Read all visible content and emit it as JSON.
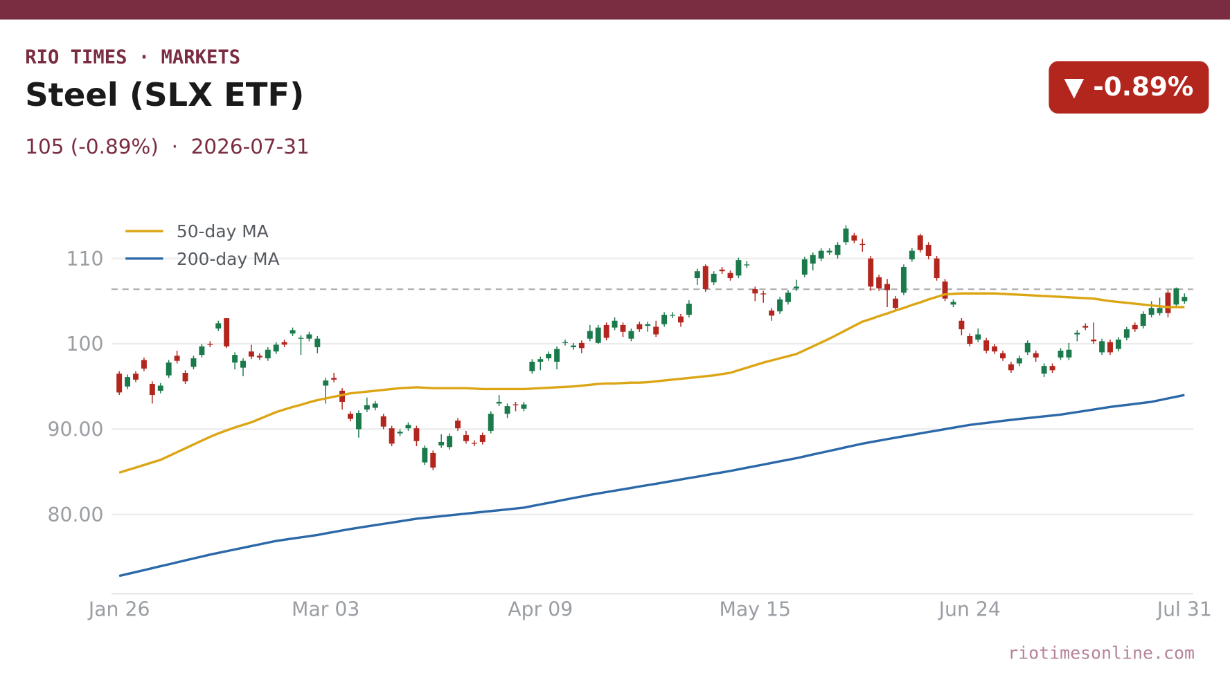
{
  "header": {
    "kicker": "RIO TIMES · MARKETS",
    "title": "Steel (SLX ETF)",
    "subtitle": "105 (-0.89%)  ·  2026-07-31",
    "badge": "▼ -0.89%"
  },
  "footer": "riotimesonline.com",
  "chart_data": {
    "type": "candlestick",
    "categories": [
      "Jan 26",
      null,
      null,
      null,
      null,
      null,
      null,
      null,
      null,
      null,
      null,
      null,
      null,
      null,
      null,
      null,
      null,
      null,
      null,
      null,
      null,
      null,
      null,
      null,
      null,
      "Mar 03",
      null,
      null,
      null,
      null,
      null,
      null,
      null,
      null,
      null,
      null,
      null,
      null,
      null,
      null,
      null,
      null,
      null,
      null,
      null,
      null,
      null,
      null,
      null,
      null,
      null,
      "Apr 09",
      null,
      null,
      null,
      null,
      null,
      null,
      null,
      null,
      null,
      null,
      null,
      null,
      null,
      null,
      null,
      null,
      null,
      null,
      null,
      null,
      null,
      null,
      null,
      null,
      null,
      "May 15",
      null,
      null,
      null,
      null,
      null,
      null,
      null,
      null,
      null,
      null,
      null,
      null,
      null,
      null,
      null,
      null,
      null,
      null,
      null,
      null,
      null,
      null,
      null,
      null,
      null,
      "Jun 24",
      null,
      null,
      null,
      null,
      null,
      null,
      null,
      null,
      null,
      null,
      null,
      null,
      null,
      null,
      null,
      null,
      null,
      null,
      null,
      null,
      null,
      null,
      null,
      null,
      null,
      "Jul 31"
    ],
    "open": [
      96.5,
      95.0,
      96.5,
      98.1,
      95.3,
      94.5,
      96.3,
      98.6,
      96.6,
      97.3,
      98.7,
      100.0,
      101.8,
      103.0,
      97.8,
      97.2,
      99.1,
      98.6,
      98.3,
      99.1,
      100.2,
      101.2,
      100.6,
      100.6,
      99.6,
      95.1,
      96.0,
      94.5,
      91.8,
      90.0,
      92.3,
      92.5,
      91.5,
      90.1,
      89.5,
      90.1,
      90.1,
      86.1,
      87.2,
      88.1,
      87.9,
      91.0,
      89.3,
      88.4,
      89.3,
      89.8,
      93.0,
      91.8,
      92.9,
      92.4,
      96.8,
      97.9,
      98.3,
      97.9,
      100.1,
      99.6,
      100.1,
      100.6,
      100.1,
      102.2,
      101.9,
      102.2,
      100.6,
      102.3,
      102.1,
      102.0,
      102.3,
      103.3,
      103.2,
      103.4,
      107.7,
      109.1,
      107.2,
      108.7,
      108.3,
      108.0,
      109.2,
      106.4,
      105.9,
      103.9,
      103.8,
      104.9,
      106.5,
      108.1,
      109.4,
      110.0,
      110.7,
      110.4,
      111.9,
      112.7,
      111.7,
      110.0,
      107.8,
      107.0,
      105.3,
      106.0,
      109.9,
      112.7,
      111.6,
      110.0,
      107.3,
      104.6,
      102.7,
      100.9,
      100.5,
      100.4,
      99.7,
      98.9,
      97.6,
      97.7,
      99.0,
      98.9,
      96.5,
      97.4,
      98.4,
      98.4,
      101.1,
      102.1,
      100.5,
      99.0,
      100.2,
      99.4,
      100.7,
      102.2,
      102.1,
      103.4,
      103.6,
      106.0,
      104.6,
      105.0
    ],
    "high": [
      96.8,
      96.4,
      96.8,
      98.4,
      95.6,
      95.4,
      98.1,
      99.2,
      96.9,
      98.6,
      100.0,
      100.3,
      102.7,
      103.0,
      99.0,
      98.3,
      99.9,
      98.9,
      99.6,
      100.2,
      100.5,
      101.9,
      101.0,
      101.4,
      100.9,
      96.0,
      96.6,
      94.8,
      92.1,
      92.2,
      93.7,
      93.3,
      91.8,
      90.4,
      90.0,
      90.8,
      90.4,
      88.1,
      87.5,
      89.4,
      89.5,
      91.3,
      89.8,
      88.7,
      89.6,
      92.1,
      94.0,
      93.0,
      93.2,
      93.2,
      98.2,
      98.5,
      99.1,
      99.7,
      100.5,
      100.1,
      100.4,
      102.2,
      102.2,
      102.5,
      103.1,
      102.5,
      101.8,
      102.6,
      102.6,
      102.7,
      103.7,
      103.7,
      103.5,
      105.1,
      108.8,
      109.3,
      108.5,
      109.0,
      108.6,
      110.1,
      109.7,
      106.7,
      106.2,
      104.2,
      105.5,
      106.3,
      107.5,
      110.2,
      110.7,
      111.2,
      111.2,
      111.9,
      113.9,
      113.0,
      112.3,
      110.3,
      108.1,
      107.6,
      105.6,
      109.3,
      111.2,
      112.9,
      111.9,
      110.3,
      107.6,
      105.2,
      103.0,
      101.2,
      101.8,
      100.7,
      100.0,
      99.2,
      97.9,
      98.6,
      100.4,
      99.2,
      97.7,
      97.7,
      99.5,
      100.1,
      101.6,
      102.4,
      102.5,
      100.6,
      100.5,
      100.8,
      102.0,
      102.5,
      103.8,
      105.0,
      105.4,
      106.3,
      106.6,
      105.9
    ],
    "low": [
      94.0,
      94.7,
      95.5,
      96.8,
      93.0,
      94.2,
      96.0,
      97.7,
      95.3,
      97.0,
      98.4,
      99.6,
      101.5,
      99.5,
      97.0,
      96.2,
      98.2,
      98.1,
      98.0,
      98.8,
      99.6,
      100.9,
      98.7,
      100.3,
      98.9,
      93.0,
      95.5,
      92.3,
      90.9,
      89.0,
      92.0,
      92.2,
      90.0,
      88.0,
      89.2,
      89.8,
      88.0,
      85.8,
      85.2,
      87.8,
      87.6,
      89.8,
      88.3,
      88.0,
      88.2,
      89.5,
      92.7,
      91.3,
      92.1,
      92.1,
      96.5,
      96.9,
      98.0,
      97.0,
      99.8,
      99.3,
      98.9,
      100.3,
      100.0,
      100.4,
      101.6,
      100.8,
      100.3,
      101.4,
      101.4,
      100.8,
      102.0,
      103.0,
      102.0,
      103.1,
      106.9,
      106.1,
      106.9,
      108.2,
      107.4,
      107.7,
      108.9,
      105.0,
      104.8,
      102.7,
      103.5,
      104.6,
      106.2,
      107.8,
      108.6,
      109.7,
      110.4,
      110.0,
      111.6,
      111.8,
      110.8,
      106.2,
      106.2,
      104.3,
      103.9,
      105.7,
      109.6,
      110.7,
      109.9,
      107.4,
      105.0,
      104.3,
      101.0,
      99.7,
      100.2,
      98.9,
      98.8,
      98.0,
      96.6,
      97.4,
      98.7,
      97.9,
      96.1,
      96.6,
      98.1,
      98.1,
      100.3,
      101.6,
      100.0,
      98.7,
      98.7,
      99.1,
      100.4,
      101.4,
      101.8,
      103.1,
      103.3,
      103.1,
      104.3,
      104.7
    ],
    "close": [
      94.3,
      96.1,
      95.8,
      97.1,
      94.0,
      95.1,
      97.8,
      98.0,
      95.6,
      98.3,
      99.7,
      99.9,
      102.4,
      99.7,
      98.7,
      98.0,
      98.5,
      98.4,
      99.3,
      99.9,
      99.9,
      101.6,
      100.7,
      101.1,
      100.6,
      95.7,
      95.8,
      93.2,
      91.2,
      91.9,
      92.8,
      93.0,
      90.3,
      88.3,
      89.7,
      90.5,
      88.6,
      87.8,
      85.5,
      88.5,
      89.2,
      90.1,
      88.6,
      88.3,
      88.5,
      91.8,
      93.2,
      92.7,
      92.8,
      92.9,
      97.9,
      98.2,
      98.8,
      99.4,
      100.2,
      99.8,
      99.5,
      101.5,
      101.9,
      100.7,
      102.7,
      101.4,
      101.5,
      101.7,
      102.3,
      101.1,
      103.4,
      103.4,
      102.5,
      104.7,
      108.5,
      106.4,
      108.2,
      108.5,
      107.7,
      109.8,
      109.3,
      105.9,
      105.8,
      103.3,
      105.2,
      106.0,
      106.7,
      109.9,
      110.4,
      110.9,
      110.9,
      111.6,
      113.5,
      112.1,
      111.6,
      106.7,
      106.5,
      106.3,
      104.2,
      109.0,
      110.9,
      111.0,
      110.3,
      107.7,
      105.3,
      104.9,
      101.7,
      100.0,
      101.1,
      99.2,
      99.1,
      98.3,
      96.9,
      98.3,
      100.1,
      98.4,
      97.4,
      96.9,
      99.2,
      99.3,
      101.3,
      101.9,
      100.3,
      100.3,
      99.0,
      100.5,
      101.7,
      101.7,
      103.5,
      104.2,
      104.2,
      103.6,
      106.5,
      105.5
    ],
    "up_color": "#1b7a4b",
    "down_color": "#b3261e",
    "series": [
      {
        "name": "50-day MA",
        "color": "#dba514",
        "values": [
          84.9,
          85.2,
          85.5,
          85.8,
          86.1,
          86.4,
          86.85,
          87.3,
          87.75,
          88.2,
          88.65,
          89.1,
          89.5,
          89.85,
          90.2,
          90.5,
          90.8,
          91.2,
          91.6,
          92.0,
          92.3,
          92.6,
          92.85,
          93.15,
          93.4,
          93.6,
          93.8,
          94.0,
          94.2,
          94.3,
          94.4,
          94.5,
          94.6,
          94.7,
          94.8,
          94.85,
          94.9,
          94.85,
          94.8,
          94.8,
          94.8,
          94.8,
          94.8,
          94.75,
          94.7,
          94.7,
          94.7,
          94.7,
          94.7,
          94.7,
          94.75,
          94.8,
          94.85,
          94.9,
          94.95,
          95.0,
          95.1,
          95.2,
          95.3,
          95.35,
          95.35,
          95.4,
          95.45,
          95.45,
          95.5,
          95.6,
          95.7,
          95.8,
          95.9,
          96.0,
          96.1,
          96.2,
          96.3,
          96.45,
          96.6,
          96.9,
          97.2,
          97.5,
          97.8,
          98.05,
          98.3,
          98.55,
          98.8,
          99.25,
          99.7,
          100.15,
          100.6,
          101.1,
          101.6,
          102.1,
          102.6,
          102.9,
          103.25,
          103.55,
          103.9,
          104.2,
          104.55,
          104.85,
          105.2,
          105.5,
          105.8,
          105.85,
          105.9,
          105.9,
          105.9,
          105.9,
          105.9,
          105.85,
          105.8,
          105.75,
          105.7,
          105.65,
          105.6,
          105.55,
          105.5,
          105.45,
          105.4,
          105.35,
          105.3,
          105.15,
          105.0,
          104.9,
          104.8,
          104.7,
          104.6,
          104.5,
          104.4,
          104.3,
          104.3,
          104.3
        ]
      },
      {
        "name": "200-day MA",
        "color": "#2b68a8",
        "values": [
          72.8,
          73.03,
          73.25,
          73.48,
          73.71,
          73.94,
          74.16,
          74.39,
          74.62,
          74.85,
          75.07,
          75.3,
          75.5,
          75.7,
          75.9,
          76.1,
          76.3,
          76.5,
          76.7,
          76.9,
          77.04,
          77.18,
          77.32,
          77.46,
          77.6,
          77.78,
          77.95,
          78.13,
          78.3,
          78.45,
          78.6,
          78.75,
          78.9,
          79.05,
          79.2,
          79.35,
          79.5,
          79.6,
          79.7,
          79.8,
          79.9,
          80.0,
          80.1,
          80.2,
          80.3,
          80.4,
          80.5,
          80.6,
          80.7,
          80.8,
          80.99,
          81.18,
          81.36,
          81.55,
          81.74,
          81.93,
          82.11,
          82.3,
          82.46,
          82.63,
          82.79,
          82.95,
          83.11,
          83.28,
          83.44,
          83.6,
          83.77,
          83.93,
          84.1,
          84.27,
          84.43,
          84.6,
          84.77,
          84.93,
          85.1,
          85.29,
          85.48,
          85.66,
          85.85,
          86.04,
          86.23,
          86.41,
          86.6,
          86.81,
          87.03,
          87.24,
          87.45,
          87.66,
          87.88,
          88.09,
          88.3,
          88.48,
          88.65,
          88.83,
          89.0,
          89.17,
          89.33,
          89.5,
          89.67,
          89.83,
          90.0,
          90.17,
          90.33,
          90.5,
          90.62,
          90.73,
          90.85,
          90.97,
          91.08,
          91.2,
          91.3,
          91.4,
          91.5,
          91.6,
          91.7,
          91.85,
          92.0,
          92.15,
          92.3,
          92.45,
          92.6,
          92.72,
          92.84,
          92.96,
          93.08,
          93.2,
          93.4,
          93.6,
          93.8,
          94.0
        ]
      }
    ],
    "ref_line": 106.4,
    "ylim": [
      70.7,
      115.5
    ],
    "yticks": [
      {
        "value": 80,
        "label": "80.00"
      },
      {
        "value": 90,
        "label": "90.00"
      },
      100,
      110
    ],
    "grid": true,
    "legend": "upper left"
  }
}
